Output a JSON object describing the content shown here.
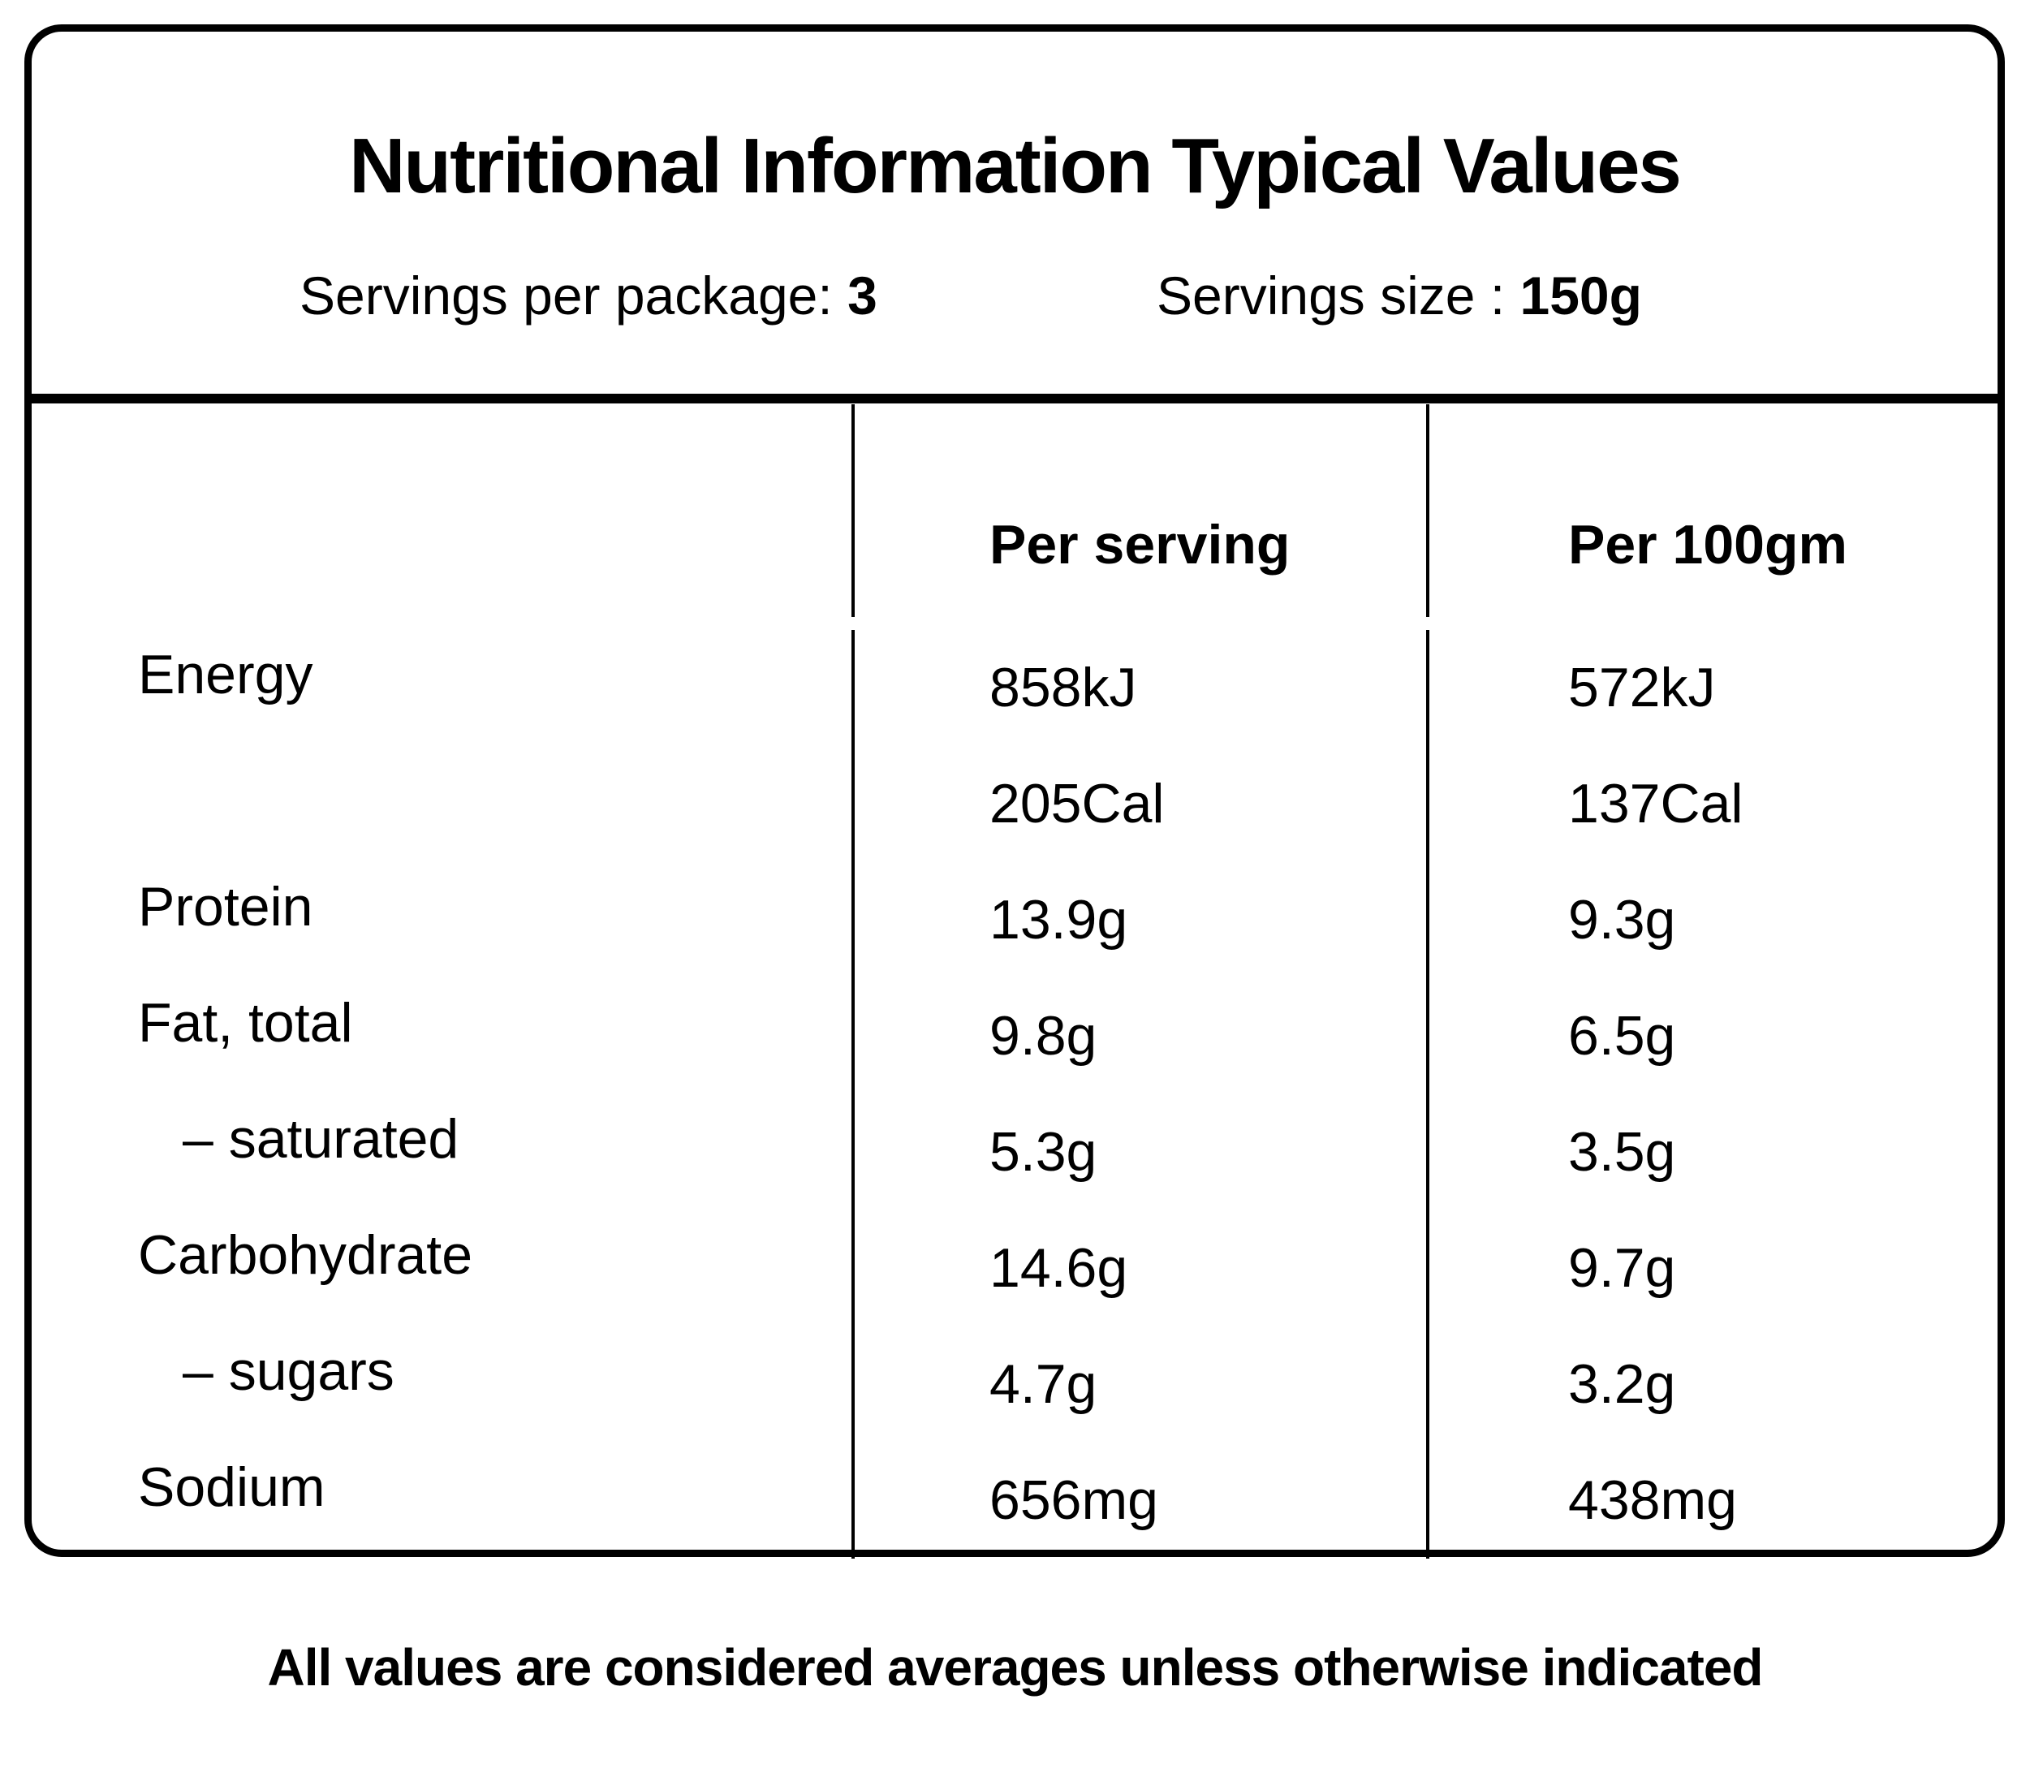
{
  "header": {
    "title": "Nutritional Information Typical Values",
    "servings_per_package": {
      "label": "Servings per package:",
      "value": "3"
    },
    "serving_size": {
      "label": "Servings size :",
      "value": "150g"
    }
  },
  "table": {
    "columns": {
      "per_serving": "Per serving",
      "per_100g": "Per 100gm"
    },
    "rows": [
      {
        "label": "Energy",
        "per_serving": "858kJ",
        "per_100g": "572kJ"
      },
      {
        "label": "",
        "per_serving": "205Cal",
        "per_100g": "137Cal"
      },
      {
        "label": "Protein",
        "per_serving": "13.9g",
        "per_100g": "9.3g"
      },
      {
        "label": "Fat, total",
        "per_serving": "9.8g",
        "per_100g": "6.5g"
      },
      {
        "label": "– saturated",
        "per_serving": "5.3g",
        "per_100g": "3.5g"
      },
      {
        "label": "Carbohydrate",
        "per_serving": "14.6g",
        "per_100g": "9.7g"
      },
      {
        "label": "– sugars",
        "per_serving": "4.7g",
        "per_100g": "3.2g"
      },
      {
        "label": "Sodium",
        "per_serving": "656mg",
        "per_100g": "438mg"
      }
    ]
  },
  "footer": {
    "note": "All values are considered averages unless otherwise indicated"
  }
}
